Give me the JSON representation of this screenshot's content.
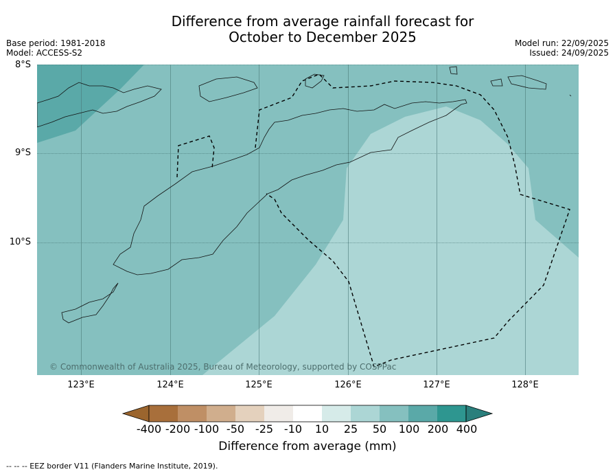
{
  "title": {
    "line1": "Difference from average rainfall forecast for",
    "line2": "October to December 2025"
  },
  "meta_left": {
    "base_period": "Base period: 1981-2018",
    "model": "Model: ACCESS-S2"
  },
  "meta_right": {
    "model_run": "Model run: 22/09/2025",
    "issued": "Issued: 24/09/2025"
  },
  "axes": {
    "latitudes": [
      "8°S",
      "9°S",
      "10°S"
    ],
    "longitudes": [
      "123°E",
      "124°E",
      "125°E",
      "126°E",
      "127°E",
      "128°E"
    ]
  },
  "copyright": "© Commonwealth of Australia 2025, Bureau of Meteorology, supported by COSPPac",
  "legend": {
    "title": "Difference from average (mm)",
    "ticks": [
      "-400",
      "-200",
      "-100",
      "-50",
      "-25",
      "-10",
      "10",
      "25",
      "50",
      "100",
      "200",
      "400"
    ],
    "colors": [
      "#a86f3b",
      "#bf8f65",
      "#d0ae8d",
      "#e4d1bd",
      "#f0ece8",
      "#ffffff",
      "#d6ebe9",
      "#acd6d5",
      "#85c0bf",
      "#5aa9a8",
      "#2e9690"
    ],
    "low_arrow_color": "#9b652e",
    "high_arrow_color": "#2a7f7c"
  },
  "footer": "--  --  -- EEZ border V11 (Flanders Marine Institute, 2019)."
}
